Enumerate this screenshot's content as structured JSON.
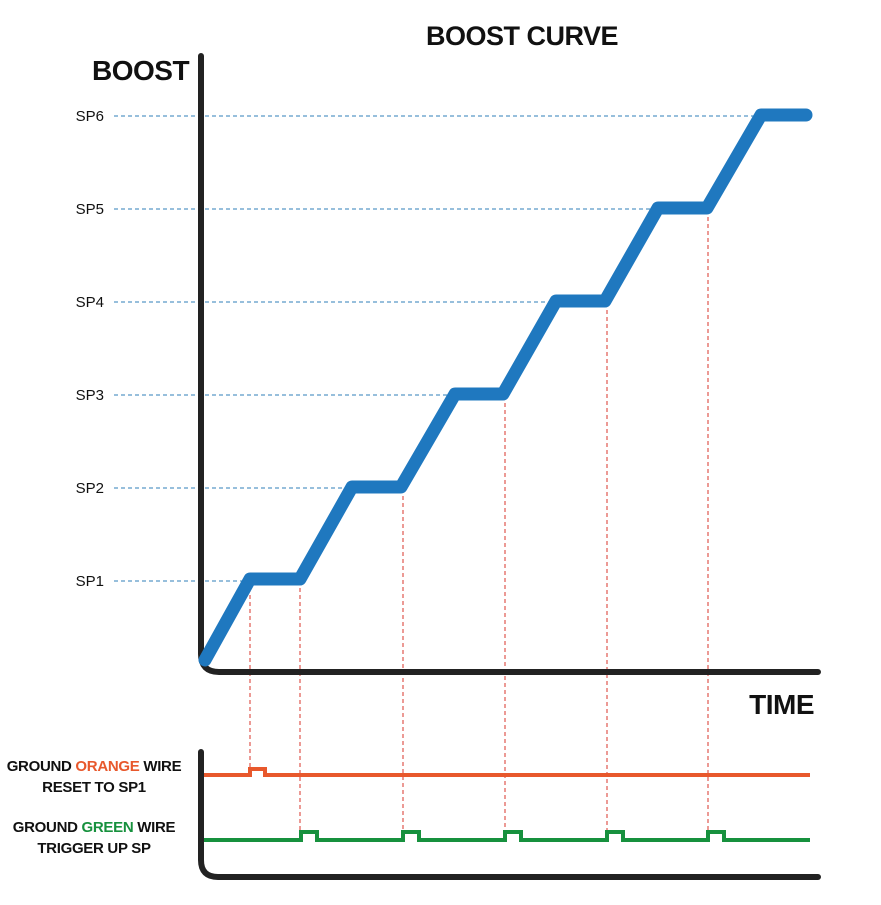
{
  "title": "BOOST CURVE",
  "y_axis_title": "BOOST",
  "x_axis_title": "TIME",
  "setpoints": [
    "SP1",
    "SP2",
    "SP3",
    "SP4",
    "SP5",
    "SP6"
  ],
  "orange_wire": {
    "prefix": "GROUND ",
    "color_word": "ORANGE",
    "suffix": " WIRE",
    "line2": "RESET TO SP1",
    "color": "#e8582c"
  },
  "green_wire": {
    "prefix": "GROUND ",
    "color_word": "GREEN",
    "suffix": " WIRE",
    "line2": "TRIGGER UP SP",
    "color": "#17913e"
  },
  "colors": {
    "curve": "#1f78bf",
    "axis": "#222222",
    "setpoint_guide": "#2f7fb8",
    "pulse_guide": "#d9342b"
  }
}
